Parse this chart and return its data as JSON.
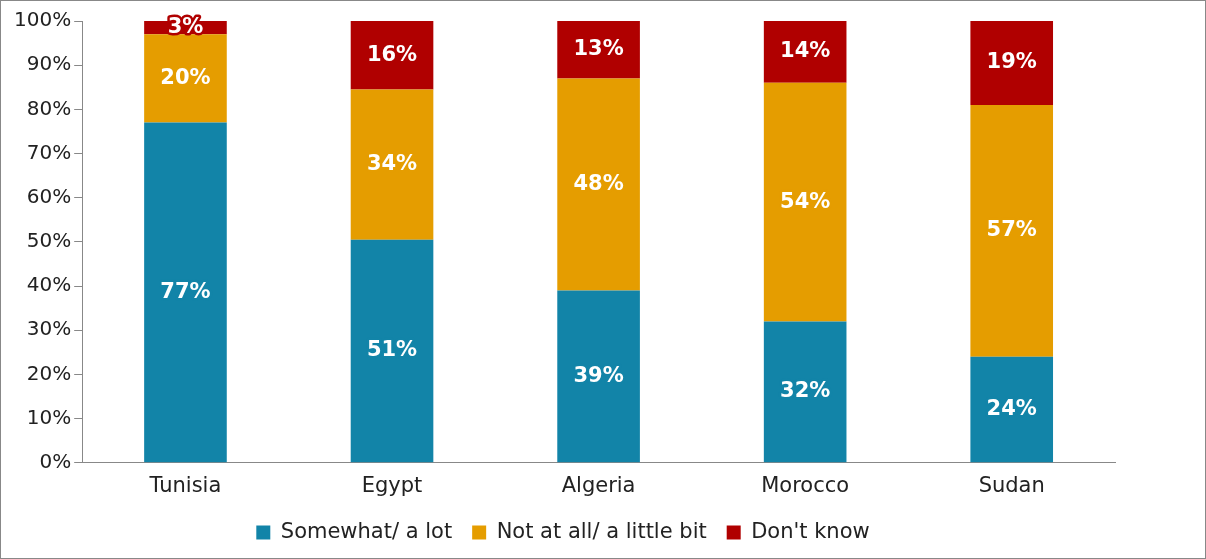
{
  "chart_data": {
    "type": "bar",
    "stacked": true,
    "categories": [
      "Tunisia",
      "Egypt",
      "Algeria",
      "Morocco",
      "Sudan"
    ],
    "series": [
      {
        "name": "Somewhat/ a lot",
        "color": "#1284a8",
        "values": [
          77,
          50.5,
          39,
          32,
          24
        ],
        "value_labels": [
          "77%",
          "51%",
          "39%",
          "32%",
          "24%"
        ]
      },
      {
        "name": "Not at all/ a little bit",
        "color": "#e59d00",
        "values": [
          20,
          34,
          48,
          54,
          57
        ],
        "value_labels": [
          "20%",
          "34%",
          "48%",
          "54%",
          "57%"
        ]
      },
      {
        "name": "Don't know",
        "color": "#b00000",
        "values": [
          3,
          15.5,
          13,
          14,
          19
        ],
        "value_labels": [
          "3%",
          "16%",
          "13%",
          "14%",
          "19%"
        ]
      }
    ],
    "ylim": [
      0,
      100
    ],
    "yticks": [
      {
        "value": 0,
        "label": "0%"
      },
      {
        "value": 10,
        "label": "10%"
      },
      {
        "value": 20,
        "label": "20%"
      },
      {
        "value": 30,
        "label": "30%"
      },
      {
        "value": 40,
        "label": "40%"
      },
      {
        "value": 50,
        "label": "50%"
      },
      {
        "value": 60,
        "label": "60%"
      },
      {
        "value": 70,
        "label": "70%"
      },
      {
        "value": 80,
        "label": "80%"
      },
      {
        "value": 90,
        "label": "90%"
      },
      {
        "value": 100,
        "label": "100%"
      }
    ],
    "grid": false,
    "legend": "bottom"
  }
}
